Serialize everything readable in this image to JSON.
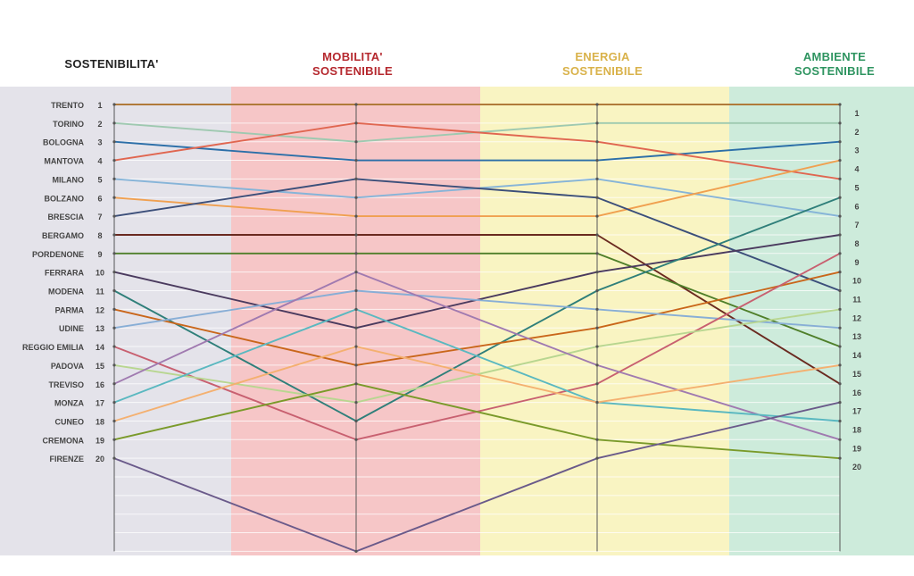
{
  "headers": {
    "col0": {
      "line1": "SOSTENIBILITA'",
      "color": "#222222"
    },
    "col1": {
      "line1": "MOBILITA'",
      "line2": "SOSTENIBILE",
      "color": "#b5282e"
    },
    "col2": {
      "line1": "ENERGIA",
      "line2": "SOSTENIBILE",
      "color": "#d9b24a"
    },
    "col3": {
      "line1": "AMBIENTE",
      "line2": "SOSTENIBILE",
      "color": "#2e9460"
    }
  },
  "band_colors": [
    "#e4e3ea",
    "#f6c6c7",
    "#f9f4c2",
    "#cdebdb"
  ],
  "chart_data": {
    "type": "line",
    "x": [
      "SOSTENIBILITA'",
      "MOBILITA' SOSTENIBILE",
      "ENERGIA SOSTENIBILE",
      "AMBIENTE SOSTENIBILE"
    ],
    "ylim": [
      1,
      25
    ],
    "y_inverted": true,
    "left_rank_labels": [
      "1",
      "2",
      "3",
      "4",
      "5",
      "6",
      "7",
      "8",
      "9",
      "10",
      "11",
      "12",
      "13",
      "14",
      "15",
      "16",
      "17",
      "18",
      "19",
      "20"
    ],
    "right_rank_labels": [
      "1",
      "2",
      "3",
      "4",
      "5",
      "6",
      "7",
      "8",
      "9",
      "10",
      "11",
      "12",
      "13",
      "14",
      "15",
      "16",
      "17",
      "18",
      "19",
      "20"
    ],
    "series": [
      {
        "name": "TRENTO",
        "values": [
          1,
          1,
          1,
          1
        ],
        "color": "#b07a3a"
      },
      {
        "name": "TORINO",
        "values": [
          2,
          3,
          2,
          2
        ],
        "color": "#9ec9b0"
      },
      {
        "name": "BOLOGNA",
        "values": [
          3,
          4,
          4,
          3
        ],
        "color": "#2c6fa8"
      },
      {
        "name": "MANTOVA",
        "values": [
          4,
          2,
          3,
          5
        ],
        "color": "#e06650"
      },
      {
        "name": "MILANO",
        "values": [
          5,
          6,
          5,
          7
        ],
        "color": "#86b4d8"
      },
      {
        "name": "BOLZANO",
        "values": [
          6,
          7,
          7,
          4
        ],
        "color": "#f0a050"
      },
      {
        "name": "BRESCIA",
        "values": [
          7,
          5,
          6,
          11
        ],
        "color": "#3c4f7a"
      },
      {
        "name": "BERGAMO",
        "values": [
          8,
          8,
          8,
          16
        ],
        "color": "#6a2a20"
      },
      {
        "name": "PORDENONE",
        "values": [
          9,
          9,
          9,
          14
        ],
        "color": "#4f7f2a"
      },
      {
        "name": "FERRARA",
        "values": [
          10,
          13,
          10,
          8
        ],
        "color": "#4a3a5e"
      },
      {
        "name": "MODENA",
        "values": [
          11,
          18,
          11,
          6
        ],
        "color": "#2f7f7a"
      },
      {
        "name": "PARMA",
        "values": [
          12,
          15,
          13,
          10
        ],
        "color": "#c9661a"
      },
      {
        "name": "UDINE",
        "values": [
          13,
          11,
          12,
          13
        ],
        "color": "#88aed6"
      },
      {
        "name": "REGGIO EMILIA",
        "values": [
          14,
          19,
          16,
          9
        ],
        "color": "#c86070"
      },
      {
        "name": "PADOVA",
        "values": [
          15,
          17,
          14,
          12
        ],
        "color": "#b8d690"
      },
      {
        "name": "TREVISO",
        "values": [
          16,
          10,
          15,
          19
        ],
        "color": "#a07ab0"
      },
      {
        "name": "MONZA",
        "values": [
          17,
          12,
          17,
          18
        ],
        "color": "#5ab8c0"
      },
      {
        "name": "CUNEO",
        "values": [
          18,
          14,
          17,
          15
        ],
        "color": "#f4b070"
      },
      {
        "name": "CREMONA",
        "values": [
          19,
          16,
          19,
          20
        ],
        "color": "#7a9a2a"
      },
      {
        "name": "FIRENZE",
        "values": [
          20,
          25,
          20,
          17
        ],
        "color": "#6a5a8a"
      }
    ]
  }
}
